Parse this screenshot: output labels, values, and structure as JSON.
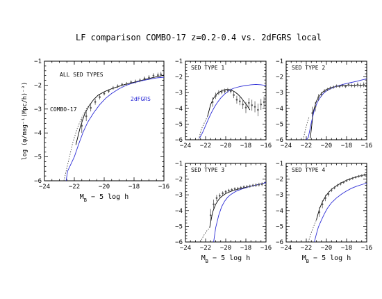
{
  "figure": {
    "title": "LF comparison COMBO-17 z=0.2-0.4 vs. 2dFGRS local",
    "xlabel": "M_B − 5 log h",
    "ylabel": "log (φ/mag⁻¹(Mpc/h)⁻³)"
  },
  "colors": {
    "combo17_fit": "#000000",
    "local_2dfgrs": "#2b2bd6",
    "data_points": "#555555",
    "axes": "#000000"
  },
  "chart_data": [
    {
      "type": "line",
      "title": "",
      "panel_label": "ALL SED TYPES",
      "annotations": [
        {
          "text": "COMBO-17",
          "color": "#000000"
        },
        {
          "text": "2dFGRS",
          "color": "#2b2bd6"
        }
      ],
      "xlabel": "M_B − 5 log h",
      "ylabel": "log (φ/mag⁻¹(Mpc/h)⁻³)",
      "xlim": [
        -24,
        -16
      ],
      "ylim": [
        -6,
        -1
      ],
      "xticks": [
        -24,
        -22,
        -20,
        -18,
        -16
      ],
      "yticks": [
        -6,
        -5,
        -4,
        -3,
        -2,
        -1
      ],
      "series": [
        {
          "name": "COMBO-17",
          "style": "solid",
          "x": [
            -21.9,
            -21.6,
            -21.3,
            -21.0,
            -20.7,
            -20.4,
            -20.0,
            -19.5,
            -19.0,
            -18.5,
            -18.0,
            -17.5,
            -17.0,
            -16.5,
            -16.0
          ],
          "y": [
            -4.5,
            -3.75,
            -3.2,
            -2.85,
            -2.6,
            -2.42,
            -2.28,
            -2.15,
            -2.05,
            -1.95,
            -1.88,
            -1.8,
            -1.72,
            -1.65,
            -1.58
          ]
        },
        {
          "name": "",
          "style": "dotted",
          "x": [
            -22.7,
            -22.4,
            -22.1,
            -21.8,
            -21.5,
            -21.2,
            -20.8
          ],
          "y": [
            -6.0,
            -5.2,
            -4.4,
            -3.8,
            -3.35,
            -3.0,
            -2.7
          ]
        },
        {
          "name": "2dFGRS",
          "style": "solid",
          "x": [
            -22.55,
            -22.45,
            -22.3,
            -22.0,
            -21.7,
            -21.4,
            -21.1,
            -20.7,
            -20.3,
            -19.9,
            -19.5,
            -19.0,
            -18.5,
            -18.0,
            -17.5,
            -17.0,
            -16.5,
            -16.0
          ],
          "y": [
            -6.0,
            -5.6,
            -5.4,
            -5.0,
            -4.45,
            -3.95,
            -3.55,
            -3.15,
            -2.82,
            -2.55,
            -2.35,
            -2.15,
            -2.0,
            -1.9,
            -1.82,
            -1.76,
            -1.7,
            -1.67
          ]
        },
        {
          "name": "",
          "style": "points",
          "x": [
            -21.5,
            -21.2,
            -20.9,
            -20.6,
            -20.3,
            -20.0,
            -19.7,
            -19.4,
            -19.1,
            -18.8,
            -18.5,
            -18.2,
            -17.9,
            -17.6,
            -17.3,
            -17.0,
            -16.7,
            -16.4,
            -16.2
          ],
          "y": [
            -3.7,
            -3.3,
            -2.95,
            -2.7,
            -2.5,
            -2.35,
            -2.25,
            -2.12,
            -2.05,
            -1.98,
            -1.95,
            -1.88,
            -1.85,
            -1.8,
            -1.72,
            -1.68,
            -1.6,
            -1.58,
            -1.55
          ],
          "yerr": [
            0.3,
            0.2,
            0.15,
            0.12,
            0.1,
            0.08,
            0.08,
            0.08,
            0.08,
            0.08,
            0.08,
            0.08,
            0.08,
            0.08,
            0.08,
            0.1,
            0.1,
            0.1,
            0.1
          ]
        }
      ]
    },
    {
      "type": "line",
      "title": "",
      "panel_label": "SED TYPE 1",
      "xlabel": "",
      "ylabel": "",
      "xlim": [
        -24,
        -16
      ],
      "ylim": [
        -6,
        -1
      ],
      "xticks": [
        -24,
        -22,
        -20,
        -18,
        -16
      ],
      "yticks": [
        -6,
        -5,
        -4,
        -3,
        -2,
        -1
      ],
      "series": [
        {
          "name": "",
          "style": "solid",
          "x": [
            -21.8,
            -21.5,
            -21.2,
            -20.9,
            -20.6,
            -20.3,
            -20.0,
            -19.7,
            -19.4,
            -19.1,
            -18.8,
            -18.5,
            -18.2,
            -17.9,
            -17.6
          ],
          "y": [
            -4.5,
            -3.75,
            -3.35,
            -3.1,
            -2.95,
            -2.85,
            -2.8,
            -2.8,
            -2.85,
            -2.95,
            -3.1,
            -3.3,
            -3.55,
            -3.8,
            -4.1
          ]
        },
        {
          "name": "",
          "style": "dotted",
          "x": [
            -22.7,
            -22.4,
            -22.1,
            -21.8
          ],
          "y": [
            -6.0,
            -5.3,
            -4.9,
            -4.5
          ]
        },
        {
          "name": "",
          "style": "solid",
          "x": [
            -22.6,
            -22.3,
            -22.0,
            -21.7,
            -21.4,
            -21.1,
            -20.8,
            -20.5,
            -20.2,
            -19.9,
            -19.6,
            -19.3,
            -19.0,
            -18.5,
            -18.0,
            -17.5,
            -17.0,
            -16.5,
            -16.0
          ],
          "y": [
            -5.9,
            -5.55,
            -5.1,
            -4.65,
            -4.25,
            -3.9,
            -3.6,
            -3.35,
            -3.15,
            -2.98,
            -2.85,
            -2.75,
            -2.68,
            -2.6,
            -2.55,
            -2.5,
            -2.48,
            -2.5,
            -2.55
          ]
        },
        {
          "name": "",
          "style": "points",
          "x": [
            -21.3,
            -21.0,
            -20.7,
            -20.4,
            -20.1,
            -19.8,
            -19.5,
            -19.2,
            -18.9,
            -18.6,
            -18.3,
            -18.0,
            -17.7,
            -17.4,
            -17.1,
            -16.8,
            -16.5,
            -16.2
          ],
          "y": [
            -3.6,
            -3.2,
            -3.0,
            -2.95,
            -2.9,
            -2.85,
            -2.9,
            -3.15,
            -3.45,
            -3.55,
            -3.75,
            -3.95,
            -3.65,
            -3.8,
            -3.9,
            -4.1,
            -3.75,
            -3.6
          ],
          "yerr": [
            0.3,
            0.2,
            0.15,
            0.15,
            0.15,
            0.15,
            0.15,
            0.2,
            0.25,
            0.25,
            0.3,
            0.35,
            0.3,
            0.35,
            0.35,
            0.4,
            0.35,
            0.35
          ]
        }
      ]
    },
    {
      "type": "line",
      "title": "",
      "panel_label": "SED TYPE 2",
      "xlabel": "",
      "ylabel": "",
      "xlim": [
        -24,
        -16
      ],
      "ylim": [
        -6,
        -1
      ],
      "xticks": [
        -24,
        -22,
        -20,
        -18,
        -16
      ],
      "yticks": [
        -6,
        -5,
        -4,
        -3,
        -2,
        -1
      ],
      "series": [
        {
          "name": "",
          "style": "solid",
          "x": [
            -21.6,
            -21.3,
            -21.0,
            -20.7,
            -20.4,
            -20.0,
            -19.5,
            -19.0,
            -18.5,
            -18.0,
            -17.5,
            -17.0,
            -16.5,
            -16.0
          ],
          "y": [
            -5.9,
            -4.2,
            -3.55,
            -3.2,
            -2.98,
            -2.8,
            -2.68,
            -2.6,
            -2.56,
            -2.53,
            -2.52,
            -2.52,
            -2.52,
            -2.52
          ]
        },
        {
          "name": "",
          "style": "dotted",
          "x": [
            -22.3,
            -22.1,
            -21.9,
            -21.7
          ],
          "y": [
            -6.0,
            -5.4,
            -4.9,
            -4.5
          ]
        },
        {
          "name": "",
          "style": "solid",
          "x": [
            -22.0,
            -21.8,
            -21.5,
            -21.2,
            -20.9,
            -20.6,
            -20.3,
            -20.0,
            -19.5,
            -19.0,
            -18.5,
            -18.0,
            -17.5,
            -17.0,
            -16.5,
            -16.0
          ],
          "y": [
            -6.0,
            -5.85,
            -4.9,
            -4.1,
            -3.6,
            -3.3,
            -3.05,
            -2.9,
            -2.72,
            -2.6,
            -2.5,
            -2.42,
            -2.35,
            -2.28,
            -2.2,
            -2.12
          ]
        },
        {
          "name": "",
          "style": "points",
          "x": [
            -21.4,
            -21.1,
            -20.8,
            -20.5,
            -20.2,
            -19.9,
            -19.6,
            -19.3,
            -19.0,
            -18.7,
            -18.4,
            -18.1,
            -17.8,
            -17.5,
            -17.2,
            -16.9,
            -16.6,
            -16.3
          ],
          "y": [
            -4.3,
            -3.9,
            -3.3,
            -3.1,
            -2.9,
            -2.8,
            -2.7,
            -2.65,
            -2.58,
            -2.6,
            -2.55,
            -2.6,
            -2.5,
            -2.55,
            -2.55,
            -2.5,
            -2.55,
            -2.5
          ],
          "yerr": [
            0.4,
            0.3,
            0.2,
            0.15,
            0.12,
            0.1,
            0.1,
            0.1,
            0.1,
            0.1,
            0.1,
            0.1,
            0.12,
            0.12,
            0.12,
            0.15,
            0.15,
            0.15
          ]
        }
      ]
    },
    {
      "type": "line",
      "title": "",
      "panel_label": "SED TYPE 3",
      "xlabel": "M_B − 5 log h",
      "ylabel": "",
      "xlim": [
        -24,
        -16
      ],
      "ylim": [
        -6,
        -1
      ],
      "xticks": [
        -24,
        -22,
        -20,
        -18,
        -16
      ],
      "yticks": [
        -6,
        -5,
        -4,
        -3,
        -2,
        -1
      ],
      "series": [
        {
          "name": "",
          "style": "solid",
          "x": [
            -21.6,
            -21.3,
            -21.0,
            -20.7,
            -20.4,
            -20.0,
            -19.5,
            -19.0,
            -18.5,
            -18.0,
            -17.5,
            -17.0,
            -16.5,
            -16.0
          ],
          "y": [
            -5.1,
            -4.1,
            -3.6,
            -3.3,
            -3.1,
            -2.92,
            -2.78,
            -2.68,
            -2.6,
            -2.52,
            -2.45,
            -2.38,
            -2.3,
            -2.22
          ]
        },
        {
          "name": "",
          "style": "dotted",
          "x": [
            -22.5,
            -22.2,
            -21.9,
            -21.6
          ],
          "y": [
            -6.0,
            -5.6,
            -5.3,
            -5.1
          ]
        },
        {
          "name": "",
          "style": "solid",
          "x": [
            -21.2,
            -21.0,
            -20.7,
            -20.4,
            -20.1,
            -19.8,
            -19.5,
            -19.0,
            -18.5,
            -18.0,
            -17.5,
            -17.0,
            -16.5,
            -16.0
          ],
          "y": [
            -6.0,
            -5.1,
            -4.3,
            -3.75,
            -3.4,
            -3.15,
            -2.98,
            -2.78,
            -2.65,
            -2.55,
            -2.45,
            -2.38,
            -2.3,
            -2.22
          ]
        },
        {
          "name": "",
          "style": "points",
          "x": [
            -21.5,
            -21.2,
            -20.9,
            -20.6,
            -20.3,
            -20.0,
            -19.7,
            -19.4,
            -19.1,
            -18.8,
            -18.5,
            -18.2,
            -17.9,
            -17.6,
            -17.3,
            -17.0,
            -16.7,
            -16.4
          ],
          "y": [
            -4.3,
            -3.6,
            -3.2,
            -3.05,
            -2.9,
            -2.8,
            -2.72,
            -2.68,
            -2.62,
            -2.6,
            -2.55,
            -2.5,
            -2.48,
            -2.45,
            -2.4,
            -2.38,
            -2.35,
            -2.32
          ],
          "yerr": [
            0.4,
            0.3,
            0.2,
            0.15,
            0.12,
            0.1,
            0.1,
            0.1,
            0.1,
            0.1,
            0.1,
            0.1,
            0.1,
            0.1,
            0.1,
            0.12,
            0.12,
            0.12
          ]
        }
      ]
    },
    {
      "type": "line",
      "title": "",
      "panel_label": "SED TYPE 4",
      "xlabel": "M_B − 5 log h",
      "ylabel": "",
      "xlim": [
        -24,
        -16
      ],
      "ylim": [
        -6,
        -1
      ],
      "xticks": [
        -24,
        -22,
        -20,
        -18,
        -16
      ],
      "yticks": [
        -6,
        -5,
        -4,
        -3,
        -2,
        -1
      ],
      "series": [
        {
          "name": "",
          "style": "solid",
          "x": [
            -21.0,
            -20.7,
            -20.4,
            -20.1,
            -19.8,
            -19.5,
            -19.0,
            -18.5,
            -18.0,
            -17.5,
            -17.0,
            -16.5,
            -16.0
          ],
          "y": [
            -4.6,
            -3.9,
            -3.45,
            -3.1,
            -2.85,
            -2.65,
            -2.42,
            -2.22,
            -2.07,
            -1.95,
            -1.85,
            -1.77,
            -1.7
          ]
        },
        {
          "name": "",
          "style": "dotted",
          "x": [
            -21.8,
            -21.5,
            -21.2,
            -21.0
          ],
          "y": [
            -6.0,
            -5.4,
            -4.9,
            -4.6
          ]
        },
        {
          "name": "",
          "style": "solid",
          "x": [
            -21.2,
            -21.0,
            -20.8,
            -20.5,
            -20.2,
            -19.9,
            -19.5,
            -19.0,
            -18.5,
            -18.0,
            -17.5,
            -17.0,
            -16.5,
            -16.0
          ],
          "y": [
            -6.0,
            -5.5,
            -5.05,
            -4.6,
            -4.2,
            -3.85,
            -3.5,
            -3.2,
            -2.95,
            -2.75,
            -2.58,
            -2.45,
            -2.35,
            -2.25
          ]
        },
        {
          "name": "",
          "style": "points",
          "x": [
            -20.7,
            -20.4,
            -20.1,
            -19.8,
            -19.5,
            -19.2,
            -18.9,
            -18.6,
            -18.3,
            -18.0,
            -17.7,
            -17.4,
            -17.1,
            -16.8,
            -16.5,
            -16.2
          ],
          "y": [
            -4.1,
            -3.6,
            -3.2,
            -2.95,
            -2.7,
            -2.55,
            -2.4,
            -2.3,
            -2.2,
            -2.1,
            -2.02,
            -1.95,
            -1.88,
            -1.82,
            -1.78,
            -1.72
          ],
          "yerr": [
            0.3,
            0.25,
            0.2,
            0.15,
            0.12,
            0.1,
            0.1,
            0.1,
            0.08,
            0.08,
            0.08,
            0.08,
            0.08,
            0.08,
            0.08,
            0.08
          ]
        }
      ]
    }
  ]
}
